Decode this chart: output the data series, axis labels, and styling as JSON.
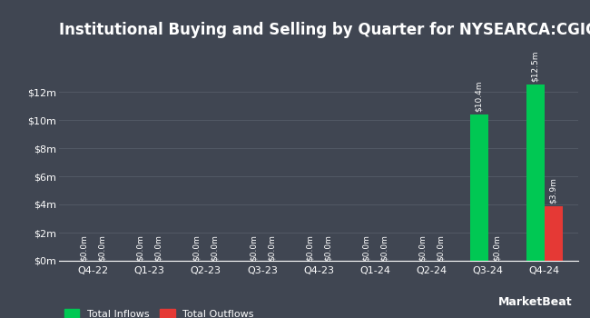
{
  "title": "Institutional Buying and Selling by Quarter for NYSEARCA:CGIC",
  "quarters": [
    "Q4-22",
    "Q1-23",
    "Q2-23",
    "Q3-23",
    "Q4-23",
    "Q1-24",
    "Q2-24",
    "Q3-24",
    "Q4-24"
  ],
  "inflows": [
    0.0,
    0.0,
    0.0,
    0.0,
    0.0,
    0.0,
    0.0,
    10400000,
    12500000
  ],
  "outflows": [
    0.0,
    0.0,
    0.0,
    0.0,
    0.0,
    0.0,
    0.0,
    0.0,
    3900000
  ],
  "inflow_labels": [
    "$0.0m",
    "$0.0m",
    "$0.0m",
    "$0.0m",
    "$0.0m",
    "$0.0m",
    "$0.0m",
    "$10.4m",
    "$12.5m"
  ],
  "outflow_labels": [
    "$0.0m",
    "$0.0m",
    "$0.0m",
    "$0.0m",
    "$0.0m",
    "$0.0m",
    "$0.0m",
    "$0.0m",
    "$3.9m"
  ],
  "inflow_color": "#00c853",
  "outflow_color": "#e53935",
  "background_color": "#404652",
  "plot_bg_color": "#404652",
  "text_color": "#ffffff",
  "grid_color": "#555c68",
  "title_fontsize": 12,
  "label_fontsize": 6.5,
  "tick_fontsize": 8,
  "legend_fontsize": 8,
  "ylim": [
    0,
    14000000
  ],
  "yticks": [
    0,
    2000000,
    4000000,
    6000000,
    8000000,
    10000000,
    12000000
  ],
  "ytick_labels": [
    "$0m",
    "$2m",
    "$4m",
    "$6m",
    "$8m",
    "$10m",
    "$12m"
  ],
  "bar_width": 0.32,
  "watermark": "MarketBeat"
}
